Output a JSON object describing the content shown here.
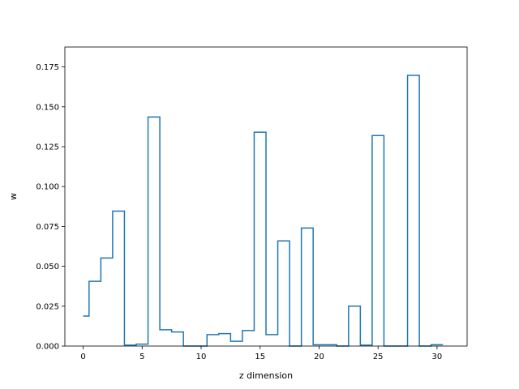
{
  "chart_data": {
    "type": "line",
    "style": "step",
    "title": "",
    "xlabel": "z dimension",
    "ylabel": "w",
    "xlim": [
      -1.55,
      32.55
    ],
    "ylim": [
      0,
      0.1875
    ],
    "xticks": [
      0,
      5,
      10,
      15,
      20,
      25,
      30
    ],
    "yticks": [
      0.0,
      0.025,
      0.05,
      0.075,
      0.1,
      0.125,
      0.15,
      0.175
    ],
    "ytick_labels": [
      "0.000",
      "0.025",
      "0.050",
      "0.075",
      "0.100",
      "0.125",
      "0.150",
      "0.175"
    ],
    "grid": false,
    "legend": "none",
    "colors": {
      "line": "#1f77b4",
      "axes": "#000000"
    },
    "series": [
      {
        "x": [
          0,
          1,
          2,
          3,
          4,
          5,
          6,
          7,
          8,
          9,
          10,
          11,
          12,
          13,
          14,
          15,
          16,
          17,
          18,
          19,
          20,
          21,
          22,
          23,
          24,
          25,
          26,
          27,
          28,
          29,
          30
        ],
        "values": [
          0.0188,
          0.0406,
          0.0552,
          0.0846,
          0.0006,
          0.0012,
          0.1436,
          0.0102,
          0.0088,
          0.0,
          0.0,
          0.0072,
          0.0078,
          0.003,
          0.0097,
          0.1341,
          0.0072,
          0.0659,
          0.0,
          0.074,
          0.0008,
          0.0008,
          0.0,
          0.025,
          0.0006,
          0.132,
          0.0,
          0.0,
          0.1697,
          0.0,
          0.0008
        ]
      }
    ]
  }
}
